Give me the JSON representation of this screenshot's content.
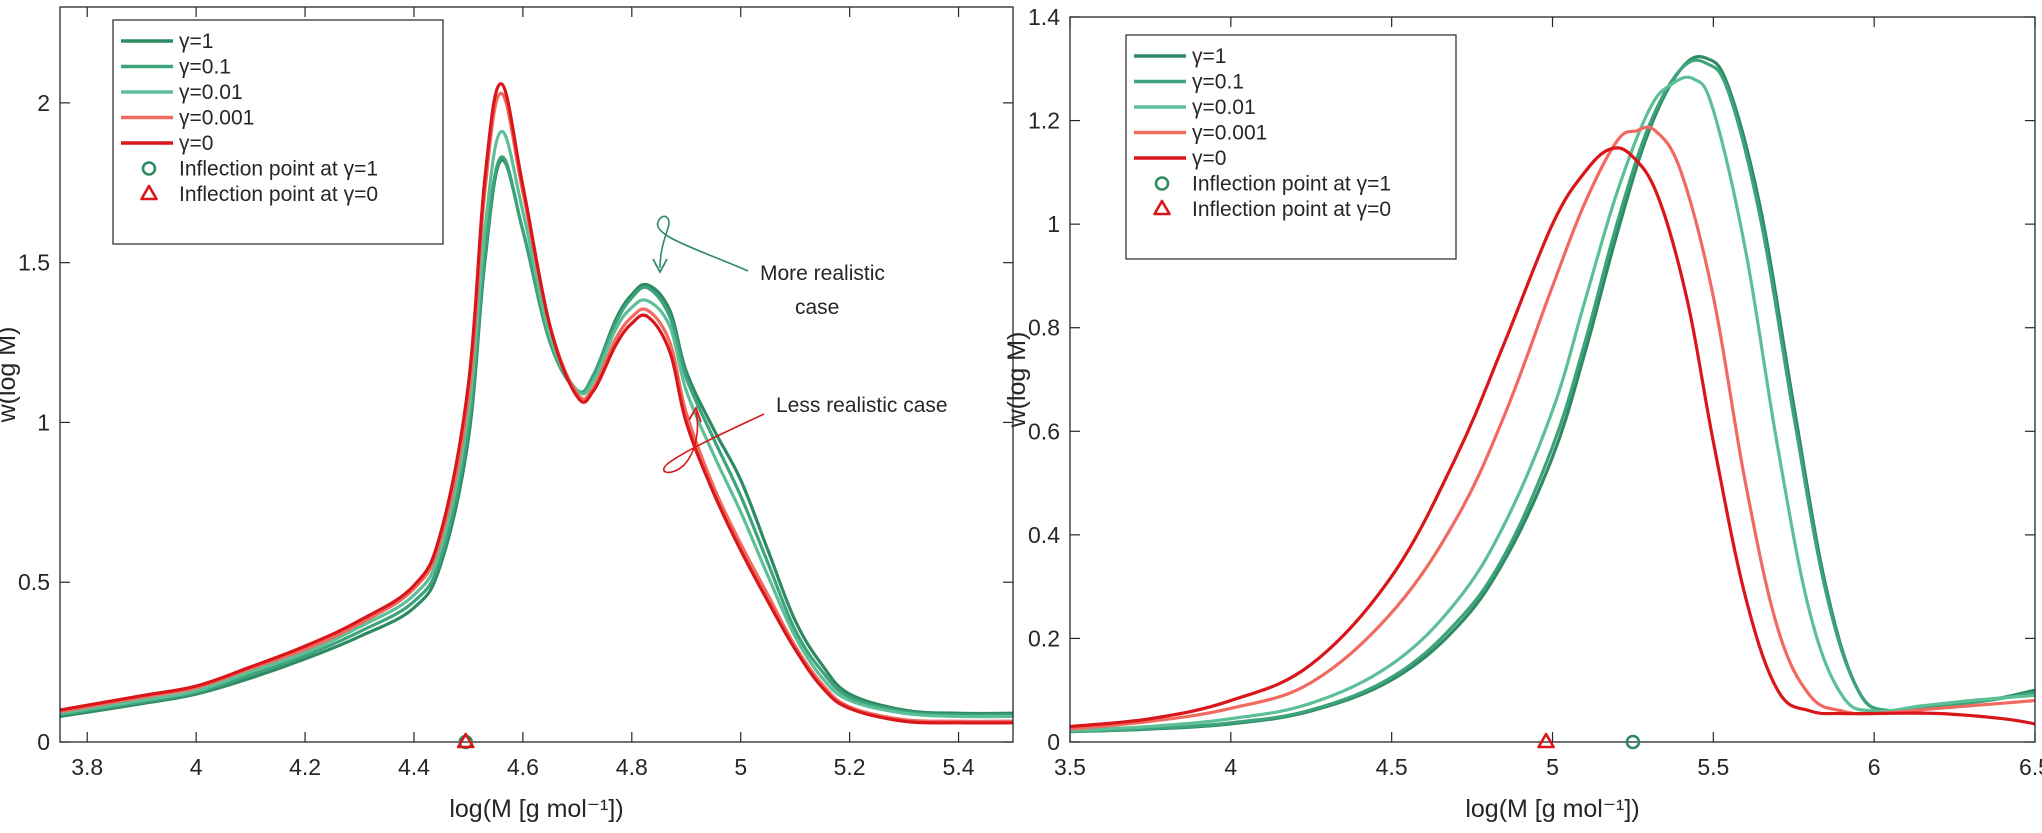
{
  "colors": {
    "g1": "#2e8a62",
    "g01": "#3da37a",
    "g001": "#5cbf97",
    "g0001": "#f16a60",
    "g0": "#d9161a"
  },
  "chart_data": [
    {
      "type": "line",
      "xlabel": "log(M  [g  mol⁻¹])",
      "ylabel": "w(log M)",
      "xlim": [
        3.75,
        5.5
      ],
      "ylim": [
        0,
        2.3
      ],
      "xticks": [
        3.8,
        4,
        4.2,
        4.4,
        4.6,
        4.8,
        5,
        5.2,
        5.4
      ],
      "xtick_labels": [
        "3.8",
        "4",
        "4.2",
        "4.4",
        "4.6",
        "4.8",
        "5",
        "5.2",
        "5.4"
      ],
      "yticks": [
        0,
        0.5,
        1,
        1.5,
        2
      ],
      "ytick_labels": [
        "0",
        "0.5",
        "1",
        "1.5",
        "2"
      ],
      "legend_position": "top-left",
      "series": [
        {
          "name": "γ=1",
          "color_key": "g1",
          "x": [
            3.75,
            3.9,
            4.0,
            4.1,
            4.2,
            4.3,
            4.4,
            4.45,
            4.5,
            4.53,
            4.56,
            4.6,
            4.65,
            4.7,
            4.73,
            4.77,
            4.8,
            4.83,
            4.87,
            4.9,
            4.95,
            5.0,
            5.05,
            5.1,
            5.15,
            5.2,
            5.3,
            5.4,
            5.5
          ],
          "y": [
            0.08,
            0.12,
            0.15,
            0.2,
            0.26,
            0.33,
            0.42,
            0.56,
            0.95,
            1.5,
            1.82,
            1.6,
            1.25,
            1.1,
            1.15,
            1.32,
            1.4,
            1.43,
            1.35,
            1.16,
            0.98,
            0.82,
            0.6,
            0.38,
            0.24,
            0.15,
            0.1,
            0.09,
            0.09
          ]
        },
        {
          "name": "γ=0.1",
          "color_key": "g01",
          "x": [
            3.75,
            3.9,
            4.0,
            4.1,
            4.2,
            4.3,
            4.4,
            4.45,
            4.5,
            4.53,
            4.56,
            4.6,
            4.65,
            4.7,
            4.73,
            4.77,
            4.8,
            4.83,
            4.87,
            4.9,
            4.95,
            5.0,
            5.05,
            5.1,
            5.15,
            5.2,
            5.3,
            5.4,
            5.5
          ],
          "y": [
            0.085,
            0.125,
            0.155,
            0.21,
            0.27,
            0.345,
            0.44,
            0.58,
            0.98,
            1.52,
            1.83,
            1.6,
            1.25,
            1.1,
            1.15,
            1.31,
            1.39,
            1.42,
            1.33,
            1.14,
            0.95,
            0.77,
            0.56,
            0.35,
            0.22,
            0.14,
            0.095,
            0.085,
            0.085
          ]
        },
        {
          "name": "γ=0.01",
          "color_key": "g001",
          "x": [
            3.75,
            3.9,
            4.0,
            4.1,
            4.2,
            4.3,
            4.4,
            4.45,
            4.5,
            4.53,
            4.56,
            4.6,
            4.65,
            4.7,
            4.73,
            4.77,
            4.8,
            4.83,
            4.87,
            4.9,
            4.95,
            5.0,
            5.05,
            5.1,
            5.15,
            5.2,
            5.3,
            5.4,
            5.5
          ],
          "y": [
            0.09,
            0.13,
            0.16,
            0.22,
            0.28,
            0.36,
            0.46,
            0.61,
            1.03,
            1.6,
            1.91,
            1.66,
            1.27,
            1.1,
            1.13,
            1.29,
            1.36,
            1.38,
            1.3,
            1.1,
            0.9,
            0.72,
            0.52,
            0.33,
            0.2,
            0.13,
            0.09,
            0.08,
            0.08
          ]
        },
        {
          "name": "γ=0.001",
          "color_key": "g0001",
          "x": [
            3.75,
            3.9,
            4.0,
            4.1,
            4.2,
            4.3,
            4.4,
            4.45,
            4.5,
            4.53,
            4.56,
            4.6,
            4.65,
            4.7,
            4.73,
            4.77,
            4.8,
            4.83,
            4.87,
            4.9,
            4.95,
            5.0,
            5.05,
            5.1,
            5.15,
            5.2,
            5.3,
            5.4,
            5.5
          ],
          "y": [
            0.095,
            0.14,
            0.17,
            0.23,
            0.29,
            0.37,
            0.48,
            0.64,
            1.08,
            1.72,
            2.03,
            1.72,
            1.3,
            1.09,
            1.11,
            1.26,
            1.33,
            1.35,
            1.25,
            1.03,
            0.8,
            0.62,
            0.46,
            0.3,
            0.18,
            0.11,
            0.07,
            0.065,
            0.065
          ]
        },
        {
          "name": "γ=0",
          "color_key": "g0",
          "x": [
            3.75,
            3.9,
            4.0,
            4.1,
            4.2,
            4.3,
            4.4,
            4.45,
            4.5,
            4.53,
            4.56,
            4.6,
            4.65,
            4.7,
            4.73,
            4.77,
            4.8,
            4.83,
            4.87,
            4.9,
            4.95,
            5.0,
            5.05,
            5.1,
            5.15,
            5.2,
            5.3,
            5.4,
            5.5
          ],
          "y": [
            0.1,
            0.145,
            0.175,
            0.235,
            0.3,
            0.38,
            0.49,
            0.66,
            1.12,
            1.76,
            2.06,
            1.74,
            1.3,
            1.08,
            1.1,
            1.24,
            1.31,
            1.33,
            1.22,
            1.0,
            0.78,
            0.6,
            0.44,
            0.29,
            0.17,
            0.105,
            0.065,
            0.06,
            0.06
          ]
        }
      ],
      "markers": [
        {
          "label": "Inflection point at γ=1",
          "shape": "circle",
          "color_key": "g1",
          "x": 4.495,
          "y": 0
        },
        {
          "label": "Inflection point at γ=0",
          "shape": "triangle",
          "color_key": "g0",
          "x": 4.495,
          "y": 0
        }
      ],
      "annotations": [
        {
          "text": "More realistic",
          "x": 5.04,
          "y": 1.48
        },
        {
          "text": "case",
          "x": 5.04,
          "y": 1.37
        },
        {
          "text": "Less realistic case",
          "x": 5.06,
          "y": 1.05
        }
      ]
    },
    {
      "type": "line",
      "xlabel": "log(M  [g  mol⁻¹])",
      "ylabel": "w(log M)",
      "xlim": [
        3.5,
        6.5
      ],
      "ylim": [
        0,
        1.4
      ],
      "xticks": [
        3.5,
        4,
        4.5,
        5,
        5.5,
        6,
        6.5
      ],
      "xtick_labels": [
        "3.5",
        "4",
        "4.5",
        "5",
        "5.5",
        "6",
        "6.5"
      ],
      "yticks": [
        0,
        0.2,
        0.4,
        0.6,
        0.8,
        1,
        1.2,
        1.4
      ],
      "ytick_labels": [
        "0",
        "0.2",
        "0.4",
        "0.6",
        "0.8",
        "1",
        "1.2",
        "1.4"
      ],
      "legend_position": "top-left",
      "series": [
        {
          "name": "γ=1",
          "color_key": "g1",
          "x": [
            3.5,
            3.75,
            4.0,
            4.25,
            4.5,
            4.7,
            4.85,
            5.0,
            5.1,
            5.2,
            5.3,
            5.4,
            5.48,
            5.55,
            5.65,
            5.75,
            5.85,
            5.95,
            6.05,
            6.2,
            6.35,
            6.5
          ],
          "y": [
            0.02,
            0.025,
            0.035,
            0.06,
            0.12,
            0.22,
            0.35,
            0.55,
            0.75,
            0.98,
            1.18,
            1.3,
            1.32,
            1.26,
            1.02,
            0.65,
            0.3,
            0.1,
            0.06,
            0.07,
            0.08,
            0.1
          ]
        },
        {
          "name": "γ=0.1",
          "color_key": "g01",
          "x": [
            3.5,
            3.75,
            4.0,
            4.25,
            4.5,
            4.7,
            4.85,
            5.0,
            5.1,
            5.2,
            5.3,
            5.4,
            5.48,
            5.55,
            5.65,
            5.75,
            5.85,
            5.95,
            6.05,
            6.2,
            6.35,
            6.5
          ],
          "y": [
            0.02,
            0.026,
            0.037,
            0.062,
            0.125,
            0.23,
            0.36,
            0.57,
            0.77,
            1.0,
            1.19,
            1.3,
            1.31,
            1.25,
            1.0,
            0.63,
            0.29,
            0.1,
            0.06,
            0.07,
            0.08,
            0.095
          ]
        },
        {
          "name": "γ=0.01",
          "color_key": "g001",
          "x": [
            3.5,
            3.75,
            4.0,
            4.25,
            4.5,
            4.7,
            4.85,
            5.0,
            5.1,
            5.2,
            5.3,
            5.37,
            5.44,
            5.5,
            5.6,
            5.7,
            5.8,
            5.9,
            6.0,
            6.15,
            6.3,
            6.5
          ],
          "y": [
            0.022,
            0.03,
            0.045,
            0.075,
            0.15,
            0.27,
            0.42,
            0.64,
            0.85,
            1.06,
            1.22,
            1.27,
            1.28,
            1.22,
            0.95,
            0.57,
            0.25,
            0.09,
            0.06,
            0.07,
            0.08,
            0.09
          ]
        },
        {
          "name": "γ=0.001",
          "color_key": "g0001",
          "x": [
            3.5,
            3.75,
            4.0,
            4.25,
            4.5,
            4.7,
            4.85,
            5.0,
            5.1,
            5.2,
            5.26,
            5.32,
            5.4,
            5.5,
            5.6,
            5.7,
            5.8,
            5.9,
            6.0,
            6.2,
            6.4,
            6.5
          ],
          "y": [
            0.025,
            0.04,
            0.065,
            0.115,
            0.25,
            0.43,
            0.63,
            0.88,
            1.04,
            1.16,
            1.18,
            1.18,
            1.1,
            0.86,
            0.5,
            0.22,
            0.09,
            0.06,
            0.055,
            0.065,
            0.075,
            0.08
          ]
        },
        {
          "name": "γ=0",
          "color_key": "g0",
          "x": [
            3.5,
            3.75,
            4.0,
            4.25,
            4.5,
            4.7,
            4.85,
            5.0,
            5.1,
            5.18,
            5.25,
            5.33,
            5.42,
            5.5,
            5.6,
            5.7,
            5.8,
            5.9,
            6.0,
            6.2,
            6.4,
            6.5
          ],
          "y": [
            0.03,
            0.045,
            0.08,
            0.15,
            0.32,
            0.55,
            0.77,
            1.0,
            1.1,
            1.145,
            1.13,
            1.05,
            0.85,
            0.58,
            0.28,
            0.1,
            0.06,
            0.055,
            0.055,
            0.055,
            0.045,
            0.035
          ]
        }
      ],
      "markers": [
        {
          "label": "Inflection point at γ=1",
          "shape": "circle",
          "color_key": "g1",
          "x": 5.25,
          "y": 0
        },
        {
          "label": "Inflection point at γ=0",
          "shape": "triangle",
          "color_key": "g0",
          "x": 4.98,
          "y": 0
        }
      ],
      "annotations": []
    }
  ]
}
